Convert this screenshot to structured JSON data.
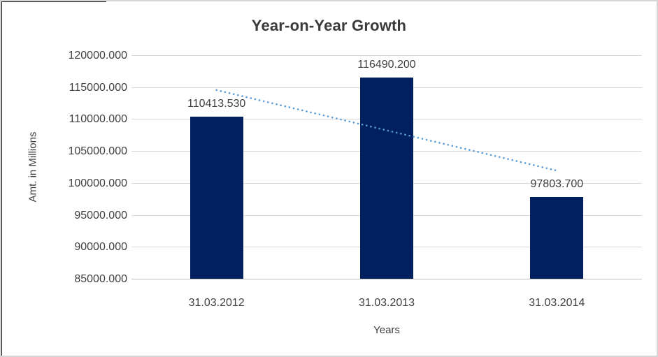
{
  "title": "Year-on-Year Growth",
  "colors": {
    "bar": "#002060",
    "trendline": "#5b9bd5",
    "gridline": "#d9d9d9",
    "axis_line": "#bfbfbf",
    "text": "#3f3f3f",
    "frame_border": "#d6d6d6",
    "frame_dark_edge": "#171717"
  },
  "chart_data": {
    "type": "bar",
    "title": "Year-on-Year Growth",
    "xlabel": "Years",
    "ylabel": "Amt. in Millions",
    "categories": [
      "31.03.2012",
      "31.03.2013",
      "31.03.2014"
    ],
    "values": [
      110413.53,
      116490.2,
      97803.7
    ],
    "data_labels": [
      "110413.530",
      "116490.200",
      "97803.700"
    ],
    "ylim": [
      85000,
      120000
    ],
    "ytick_step": 5000,
    "ytick_labels": [
      "85000.000",
      "90000.000",
      "95000.000",
      "100000.000",
      "105000.000",
      "110000.000",
      "115000.000",
      "120000.000"
    ],
    "grid": "horizontal",
    "legend": "none",
    "bar_color": "#002060",
    "trendline": {
      "type": "linear",
      "style": "dotted",
      "color": "#5b9bd5"
    }
  }
}
